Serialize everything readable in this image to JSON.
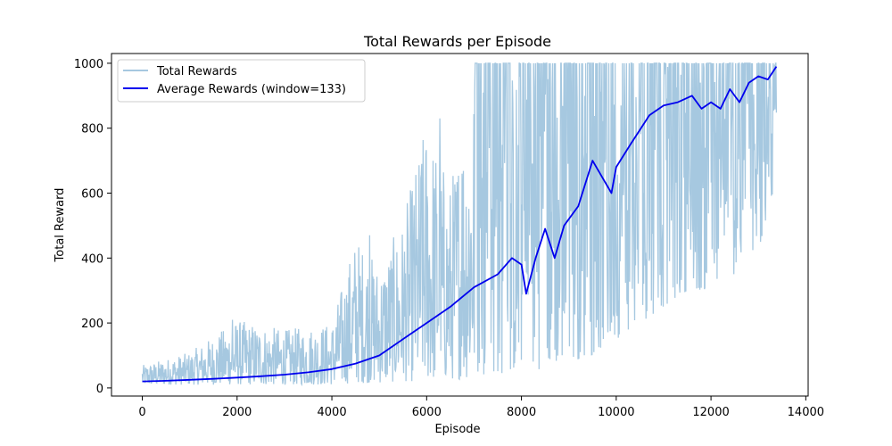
{
  "chart_data": {
    "type": "line",
    "title": "Total Rewards per Episode",
    "xlabel": "Episode",
    "ylabel": "Total Reward",
    "xlim": [
      -650,
      14050
    ],
    "ylim": [
      -25,
      1030
    ],
    "x_ticks": [
      0,
      2000,
      4000,
      6000,
      8000,
      10000,
      12000,
      14000
    ],
    "y_ticks": [
      0,
      200,
      400,
      600,
      800,
      1000
    ],
    "grid": false,
    "legend_position": "top-left",
    "series": [
      {
        "name": "Total Rewards",
        "color": "#a6c8e0",
        "style": "raw-noisy",
        "episodes": 13380,
        "x": [
          0,
          1000,
          2000,
          3000,
          4000,
          4500,
          5000,
          5500,
          6000,
          6500,
          7000,
          7500,
          8000,
          8500,
          9000,
          9500,
          10000,
          10500,
          11000,
          11500,
          12000,
          12500,
          13000,
          13380
        ],
        "min_envelope": [
          10,
          10,
          10,
          10,
          10,
          15,
          15,
          20,
          20,
          25,
          30,
          40,
          50,
          60,
          80,
          100,
          150,
          200,
          250,
          300,
          300,
          350,
          400,
          650
        ],
        "max_envelope": [
          70,
          110,
          210,
          180,
          200,
          470,
          380,
          520,
          830,
          640,
          1000,
          1000,
          1000,
          1000,
          1000,
          1000,
          1000,
          1000,
          1000,
          1000,
          1000,
          1000,
          1000,
          1000
        ],
        "spikes": [
          {
            "x": 1900,
            "y": 210
          },
          {
            "x": 4800,
            "y": 470
          },
          {
            "x": 5900,
            "y": 690
          },
          {
            "x": 6280,
            "y": 830
          },
          {
            "x": 6750,
            "y": 660
          },
          {
            "x": 7200,
            "y": 910
          }
        ]
      },
      {
        "name": "Average Rewards (window=133)",
        "color": "#0000ee",
        "x": [
          0,
          500,
          1000,
          1500,
          2000,
          2500,
          3000,
          3500,
          4000,
          4500,
          5000,
          5500,
          6000,
          6500,
          7000,
          7500,
          7800,
          8000,
          8100,
          8300,
          8500,
          8700,
          8900,
          9200,
          9500,
          9700,
          9900,
          10000,
          10300,
          10700,
          11000,
          11300,
          11600,
          11800,
          12000,
          12200,
          12400,
          12600,
          12800,
          13000,
          13200,
          13380
        ],
        "values": [
          20,
          22,
          25,
          28,
          32,
          36,
          41,
          48,
          58,
          75,
          100,
          150,
          200,
          250,
          310,
          350,
          400,
          380,
          290,
          400,
          490,
          400,
          500,
          560,
          700,
          650,
          600,
          680,
          750,
          840,
          870,
          880,
          900,
          860,
          880,
          860,
          920,
          880,
          940,
          960,
          950,
          990
        ]
      }
    ]
  }
}
